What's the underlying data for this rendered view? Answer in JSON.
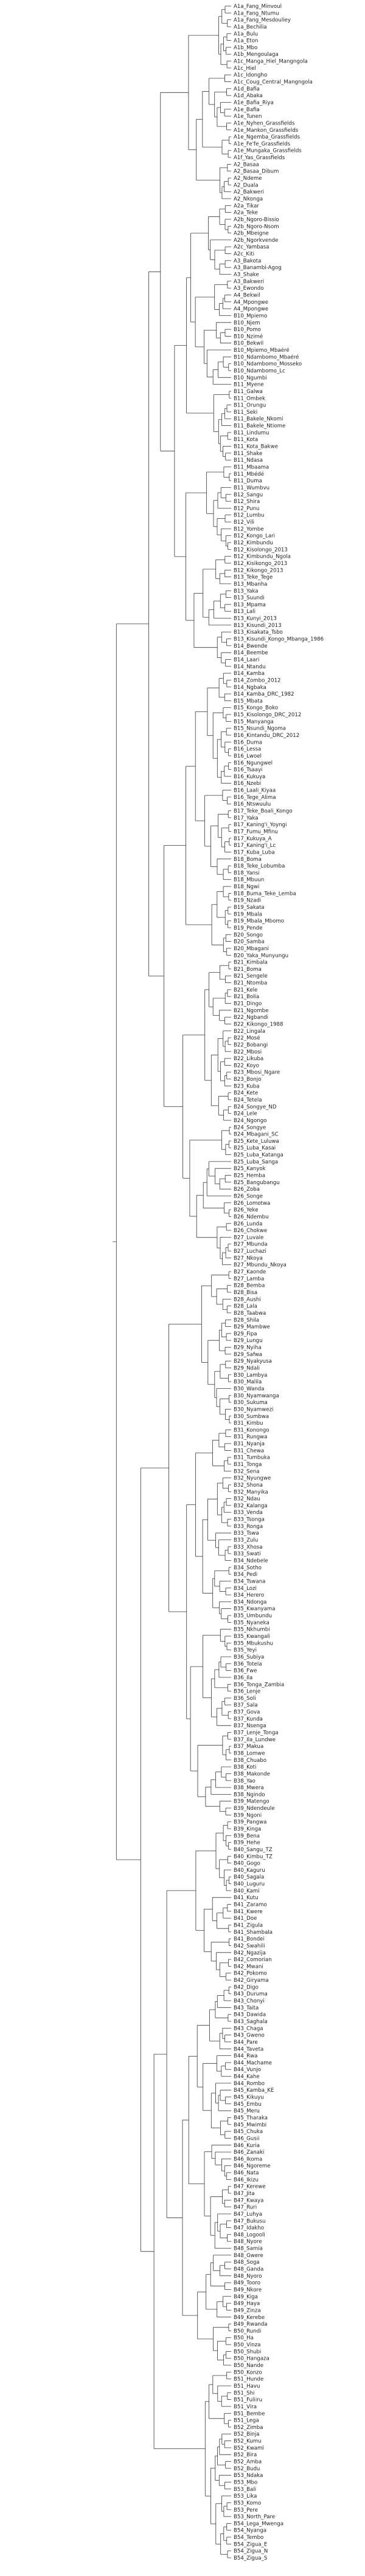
{
  "diagram": {
    "type": "phylogenetic-tree",
    "orientation": "left-to-right",
    "line_color": "#333333",
    "text_color": "#222222",
    "taxa": [
      "A1a_Fang_Minvoul",
      "A1a_Fang_Ntumu",
      "A1a_Fang_Mesdouliey",
      "A1a_Bechilia",
      "A1a_Bulu",
      "A1a_Eton",
      "A1b_Mbo",
      "A1b_Mengoulaga",
      "A1c_Manga_Hiel_Mangngola",
      "A1c_Hiel",
      "A1c_Idongho",
      "A1c_Coug_Central_Mangngola",
      "A1d_Bafia",
      "A1d_Abaka",
      "A1e_Bafia_Riya",
      "A1e_Bafia",
      "A1e_Tunen",
      "A1e_Nyhen_Grassfields",
      "A1e_Mankon_Grassfields",
      "A1e_Ngemba_Grassfields",
      "A1e_Fe'fe_Grassfields",
      "A1e_Mungaka_Grassfields",
      "A1f_Yas_Grassfields",
      "A2_Basaa",
      "A2_Basaa_Dibum",
      "A2_Ndeme",
      "A2_Duala",
      "A2_Bakweri",
      "A2_Nkonga",
      "A2a_Tikar",
      "A2a_Teke",
      "A2b_Ngoro-Bissio",
      "A2b_Ngoro-Nsom",
      "A2b_Mbeigne",
      "A2b_Ngorkvende",
      "A2c_Yambasa",
      "A2c_Kiti",
      "A3_Bakota",
      "A3_Banambi-Agog",
      "A3_Shake",
      "A3_Bakweri",
      "A3_Ewondo",
      "A4_Bekwil",
      "A4_Mpongwe",
      "A4_Mpongwe",
      "B10_Mpiemo",
      "B10_Njem",
      "B10_Pomo",
      "B10_Nzimé",
      "B10_Bekwil",
      "B10_Mpiemo_Mbaéré",
      "B10_Ndambomo_Mbaéré",
      "B10_Ndambomo_Mosseko",
      "B10_Ndambomo_Lc",
      "B10_Ngumbi",
      "B11_Myene",
      "B11_Galwa",
      "B11_Ombek",
      "B11_Orungu",
      "B11_Seki",
      "B11_Bakele_Nkomi",
      "B11_Bakele_Ntiome",
      "B11_Lindumu",
      "B11_Kota",
      "B11_Kota_Bakwe",
      "B11_Shake",
      "B11_Ndasa",
      "B11_Mbaama",
      "B11_Mbédé",
      "B11_Duma",
      "B11_Wumbvu",
      "B12_Sangu",
      "B12_Shira",
      "B12_Punu",
      "B12_Lumbu",
      "B12_Vili",
      "B12_Yombe",
      "B12_Kongo_Lari",
      "B12_Kimbundu",
      "B12_Kisolongo_2013",
      "B12_Kimbundu_Ngola",
      "B12_Kisikongo_2013",
      "B12_Kikongo_2013",
      "B13_Teke_Tege",
      "B13_Mbanha",
      "B13_Yaka",
      "B13_Suundi",
      "B13_Mpama",
      "B13_Lali",
      "B13_Kunyi_2013",
      "B13_Kisundi_2013",
      "B13_Kisakata_Tsbo",
      "B13_Kisundi_Kongo_Mbanga_1986",
      "B14_Bwende",
      "B14_Beembe",
      "B14_Laari",
      "B14_Ntandu",
      "B14_Kamba",
      "B14_Zombo_2012",
      "B14_Ngbaka",
      "B14_Kamba_DRC_1982",
      "B15_Mbata",
      "B15_Kongo_Boko",
      "B15_Kisolongo_DRC_2012",
      "B15_Manyanga",
      "B15_Nsundi_Ngoma",
      "B16_Kintandu_DRC_2012",
      "B16_Duma",
      "B16_Lessa",
      "B16_Lwoel",
      "B16_Ngungwel",
      "B16_Tsaayi",
      "B16_Kukuya",
      "B16_Nzebi",
      "B16_Laali_Kiyaa",
      "B16_Tege_Alima",
      "B16_Ntswuulu",
      "B17_Teke_Boali_Kongo",
      "B17_Yaka",
      "B17_Kaning'i_Yoyngi",
      "B17_Fumu_Mfinu",
      "B17_Kukuya_A",
      "B17_Kaning'i_Lc",
      "B17_Kuba_Luba",
      "B18_Boma",
      "B18_Teke_Lobumba",
      "B18_Yansi",
      "B18_Mbuun",
      "B18_Ngwi",
      "B18_Buma_Teke_Lemba",
      "B19_Nzadi",
      "B19_Sakata",
      "B19_Mbala",
      "B19_Mbala_Mbomo",
      "B19_Pende",
      "B20_Songo",
      "B20_Samba",
      "B20_Mbagani",
      "B20_Yaka_Munyungu",
      "B21_Kimbala",
      "B21_Boma",
      "B21_Sengele",
      "B21_Ntomba",
      "B21_Kele",
      "B21_Bolia",
      "B21_Dingo",
      "B21_Ngombe",
      "B22_Ngbandi",
      "B22_Kikongo_1988",
      "B22_Lingala",
      "B22_Mosé",
      "B22_Bobangi",
      "B22_Mbosi",
      "B22_Likuba",
      "B22_Koyo",
      "B23_Mbosi_Ngare",
      "B23_Bonjo",
      "B23_Kuba",
      "B24_Kete",
      "B24_Tetela",
      "B24_Songye_ND",
      "B24_Lele",
      "B24_Ngongo",
      "B24_Songye",
      "B24_Mbagani_SC",
      "B25_Kete_Luluwa",
      "B25_Luba_Kasai",
      "B25_Luba_Katanga",
      "B25_Luba_Sanga",
      "B25_Kanyok",
      "B25_Hemba",
      "B25_Bangubangu",
      "B26_Zoba",
      "B26_Songe",
      "B26_Lomotwa",
      "B26_Yeke",
      "B26_Ndembu",
      "B26_Lunda",
      "B26_Chokwe",
      "B27_Luvale",
      "B27_Mbunda",
      "B27_Luchazi",
      "B27_Nkoya",
      "B27_Mbundu_Nkoya",
      "B27_Kaonde",
      "B27_Lamba",
      "B28_Bemba",
      "B28_Bisa",
      "B28_Aushi",
      "B28_Lala",
      "B28_Taabwa",
      "B28_Shila",
      "B29_Mambwe",
      "B29_Fipa",
      "B29_Lungu",
      "B29_Nyiha",
      "B29_Safwa",
      "B29_Nyakyusa",
      "B29_Ndali",
      "B30_Lambya",
      "B30_Malila",
      "B30_Wanda",
      "B30_Nyamwanga",
      "B30_Sukuma",
      "B30_Nyamwezi",
      "B30_Sumbwa",
      "B31_Kimbu",
      "B31_Konongo",
      "B31_Rungwa",
      "B31_Nyanja",
      "B31_Chewa",
      "B31_Tumbuka",
      "B31_Tonga",
      "B32_Sena",
      "B32_Nyungwe",
      "B32_Shona",
      "B32_Manyika",
      "B32_Ndau",
      "B32_Kalanga",
      "B33_Venda",
      "B33_Tsonga",
      "B33_Ronga",
      "B33_Tswa",
      "B33_Zulu",
      "B33_Xhosa",
      "B33_Swati",
      "B34_Ndebele",
      "B34_Sotho",
      "B34_Pedi",
      "B34_Tswana",
      "B34_Lozi",
      "B34_Herero",
      "B34_Ndonga",
      "B35_Kwanyama",
      "B35_Umbundu",
      "B35_Nyaneka",
      "B35_Nkhumbi",
      "B35_Kwangali",
      "B35_Mbukushu",
      "B35_Yeyi",
      "B36_Subiya",
      "B36_Totela",
      "B36_Fwe",
      "B36_Ila",
      "B36_Tonga_Zambia",
      "B36_Lenje",
      "B36_Soli",
      "B37_Sala",
      "B37_Gova",
      "B37_Kunda",
      "B37_Nsenga",
      "B37_Lenje_Tonga",
      "B37_Ila_Lundwe",
      "B37_Makua",
      "B38_Lomwe",
      "B38_Chuabo",
      "B38_Koti",
      "B38_Makonde",
      "B38_Yao",
      "B38_Mwera",
      "B38_Ngindo",
      "B39_Matengo",
      "B39_Ndendeule",
      "B39_Ngoni",
      "B39_Pangwa",
      "B39_Kinga",
      "B39_Bena",
      "B39_Hehe",
      "B40_Sangu_TZ",
      "B40_Kimbu_TZ",
      "B40_Gogo",
      "B40_Kaguru",
      "B40_Sagala",
      "B40_Luguru",
      "B40_Kami",
      "B41_Kutu",
      "B41_Zaramo",
      "B41_Kwere",
      "B41_Doe",
      "B41_Zigula",
      "B41_Shambala",
      "B41_Bondei",
      "B42_Swahili",
      "B42_Ngazija",
      "B42_Comorian",
      "B42_Mwani",
      "B42_Pokomo",
      "B42_Giryama",
      "B42_Digo",
      "B43_Duruma",
      "B43_Chonyi",
      "B43_Taita",
      "B43_Dawida",
      "B43_Saghala",
      "B43_Chaga",
      "B43_Gweno",
      "B44_Pare",
      "B44_Taveta",
      "B44_Rwa",
      "B44_Machame",
      "B44_Vunjo",
      "B44_Kahe",
      "B44_Rombo",
      "B45_Kamba_KE",
      "B45_Kikuyu",
      "B45_Embu",
      "B45_Meru",
      "B45_Tharaka",
      "B45_Mwimbi",
      "B45_Chuka",
      "B46_Gusii",
      "B46_Kuria",
      "B46_Zanaki",
      "B46_Ikoma",
      "B46_Ngoreme",
      "B46_Nata",
      "B46_Ikizu",
      "B47_Kerewe",
      "B47_Jita",
      "B47_Kwaya",
      "B47_Ruri",
      "B47_Luhya",
      "B47_Bukusu",
      "B47_Idakho",
      "B48_Logooli",
      "B48_Nyore",
      "B48_Samia",
      "B48_Gwere",
      "B48_Soga",
      "B48_Ganda",
      "B48_Nyoro",
      "B49_Tooro",
      "B49_Nkore",
      "B49_Kiga",
      "B49_Haya",
      "B49_Zinza",
      "B49_Kerebe",
      "B49_Rwanda",
      "B50_Rundi",
      "B50_Ha",
      "B50_Vinza",
      "B50_Shubi",
      "B50_Hangaza",
      "B50_Nande",
      "B50_Konzo",
      "B51_Hunde",
      "B51_Havu",
      "B51_Shi",
      "B51_Fuliiru",
      "B51_Vira",
      "B51_Bembe",
      "B51_Lega",
      "B52_Zimba",
      "B52_Binja",
      "B52_Kumu",
      "B52_Kwami",
      "B52_Bira",
      "B52_Amba",
      "B52_Budu",
      "B53_Ndaka",
      "B53_Mbo",
      "B53_Bali",
      "B53_Lika",
      "B53_Komo",
      "B53_Pere",
      "B53_North_Pare",
      "B54_Lega_Mwenga",
      "B54_Nyanga",
      "B54_Tembo",
      "B54_Zigua_E",
      "B54_Zigua_N",
      "B54_Zigua_S"
    ]
  }
}
